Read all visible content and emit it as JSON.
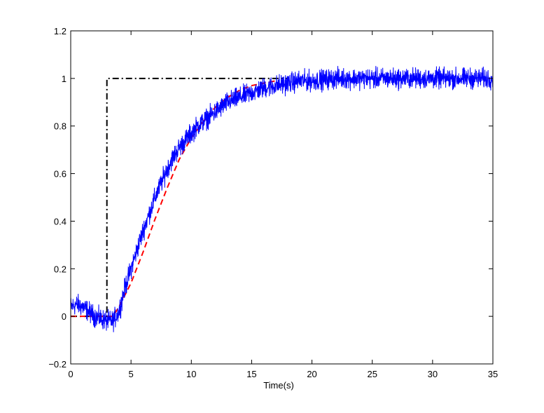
{
  "chart_data": {
    "type": "line",
    "title": "",
    "xlabel": "Time(s)",
    "ylabel": "",
    "xlim": [
      0,
      35
    ],
    "ylim": [
      -0.2,
      1.2
    ],
    "x_ticks": [
      0,
      5,
      10,
      15,
      20,
      25,
      30,
      35
    ],
    "x_tick_labels": [
      "0",
      "5",
      "10",
      "15",
      "20",
      "25",
      "30",
      "35"
    ],
    "y_ticks": [
      -0.2,
      0,
      0.2,
      0.4,
      0.6,
      0.8,
      1,
      1.2
    ],
    "y_tick_labels": [
      "−0.2",
      "0",
      "0.2",
      "0.4",
      "0.6",
      "0.8",
      "1",
      "1.2"
    ],
    "grid": false,
    "legend": "none",
    "series": [
      {
        "style": "dash-dot",
        "color": "#000000",
        "x": [
          0,
          3,
          3,
          18
        ],
        "y": [
          0,
          0,
          1,
          1
        ]
      },
      {
        "style": "dashed",
        "color": "#ff0000",
        "x": [
          0,
          3.5,
          4,
          5,
          6,
          7,
          8,
          9,
          10,
          11,
          12,
          13,
          14,
          15,
          16,
          17
        ],
        "y": [
          0,
          0,
          0.04,
          0.14,
          0.27,
          0.41,
          0.54,
          0.66,
          0.75,
          0.82,
          0.88,
          0.92,
          0.95,
          0.97,
          0.98,
          0.99
        ]
      },
      {
        "style": "solid-noisy",
        "color": "#0000ff",
        "x": [
          0,
          0.5,
          1,
          1.5,
          2,
          2.5,
          3,
          3.5,
          4,
          4.5,
          5,
          5.5,
          6,
          6.5,
          7,
          7.5,
          8,
          8.5,
          9,
          9.5,
          10,
          10.5,
          11,
          11.5,
          12,
          12.5,
          13,
          13.5,
          14,
          14.5,
          15,
          15.5,
          16,
          17,
          18,
          19,
          20,
          22,
          24,
          26,
          28,
          30,
          32,
          34,
          35
        ],
        "y": [
          0.04,
          0.05,
          0.04,
          0.02,
          0.0,
          -0.01,
          -0.02,
          -0.02,
          0.02,
          0.12,
          0.2,
          0.28,
          0.36,
          0.43,
          0.5,
          0.56,
          0.62,
          0.67,
          0.71,
          0.74,
          0.77,
          0.8,
          0.82,
          0.84,
          0.86,
          0.88,
          0.9,
          0.91,
          0.92,
          0.93,
          0.94,
          0.95,
          0.96,
          0.97,
          0.98,
          0.99,
          0.99,
          1.0,
          1.0,
          1.0,
          1.0,
          1.0,
          1.0,
          1.0,
          1.0
        ],
        "noise_amplitude": 0.03
      }
    ]
  }
}
